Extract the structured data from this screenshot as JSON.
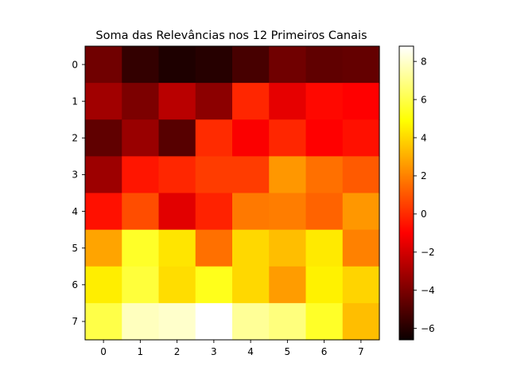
{
  "chart_data": {
    "type": "heatmap",
    "title": "Soma das Relevâncias nos 12 Primeiros Canais",
    "xlabel": "",
    "ylabel": "",
    "x_ticks": [
      "0",
      "1",
      "2",
      "3",
      "4",
      "5",
      "6",
      "7"
    ],
    "y_ticks": [
      "0",
      "1",
      "2",
      "3",
      "4",
      "5",
      "6",
      "7"
    ],
    "colormap": "hot",
    "vmin": -6.6,
    "vmax": 8.8,
    "colorbar_ticks": [
      -6,
      -4,
      -2,
      0,
      2,
      4,
      6,
      8
    ],
    "colorbar_tick_labels": [
      "−6",
      "−4",
      "−2",
      "0",
      "2",
      "4",
      "6",
      "8"
    ],
    "values": [
      [
        -4.5,
        -6.0,
        -6.5,
        -6.3,
        -5.5,
        -4.5,
        -4.9,
        -4.8
      ],
      [
        -3.3,
        -4.2,
        -2.7,
        -3.8,
        -0.1,
        -1.6,
        -0.8,
        -1.0
      ],
      [
        -4.9,
        -3.5,
        -5.1,
        0.0,
        -1.1,
        -0.1,
        -1.0,
        -0.6
      ],
      [
        -3.4,
        -0.5,
        -0.1,
        0.4,
        0.4,
        2.5,
        1.6,
        1.1
      ],
      [
        -0.6,
        0.8,
        -1.7,
        -0.2,
        1.8,
        1.9,
        1.3,
        2.5
      ],
      [
        2.8,
        5.5,
        4.3,
        1.6,
        4.0,
        3.4,
        4.4,
        2.0
      ],
      [
        4.5,
        5.8,
        4.1,
        5.3,
        4.0,
        2.6,
        4.6,
        3.9
      ],
      [
        6.0,
        7.8,
        8.0,
        8.8,
        7.2,
        6.8,
        5.5,
        3.4
      ]
    ]
  }
}
